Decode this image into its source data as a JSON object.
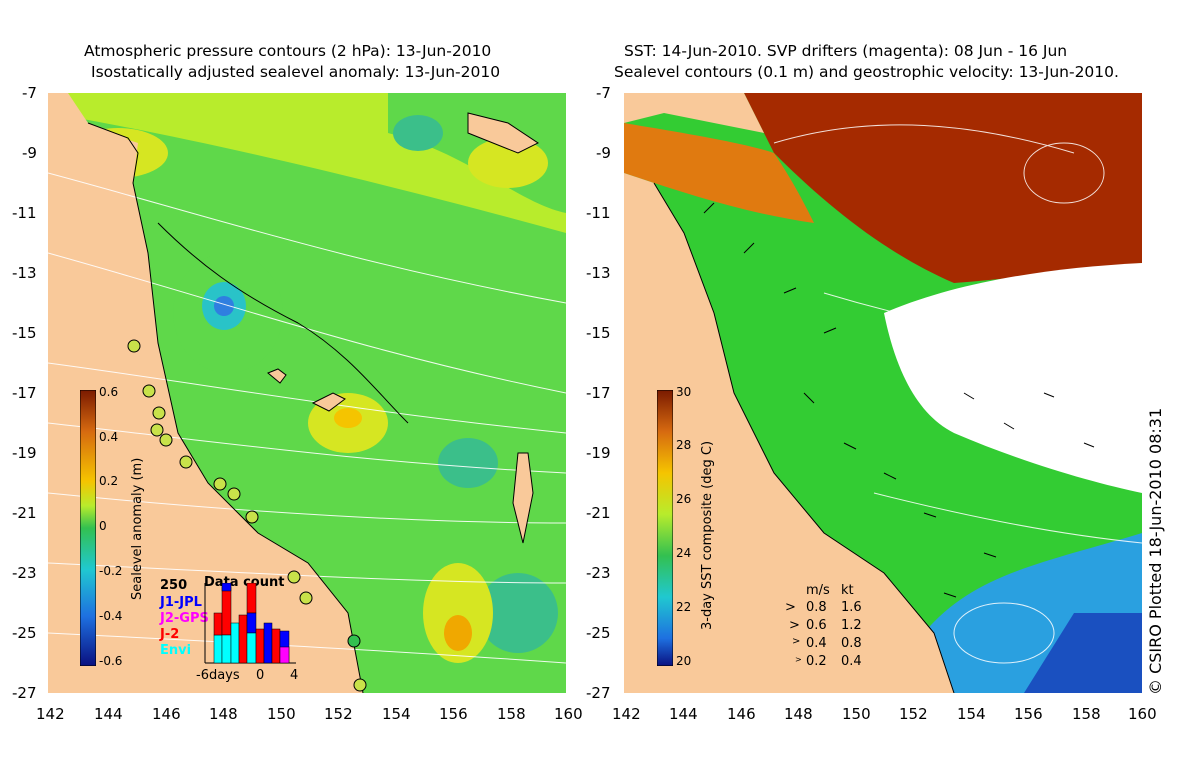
{
  "left_panel": {
    "title_line1": "Atmospheric pressure contours (2 hPa): 13-Jun-2010",
    "title_line2": "Isostatically adjusted sealevel anomaly: 13-Jun-2010",
    "colorbar": {
      "label": "Sealevel anomaly (m)",
      "ticks": [
        "0.6",
        "0.4",
        "0.2",
        "0",
        "-0.2",
        "-0.4",
        "-0.6"
      ]
    },
    "data_count": {
      "title": "Data count",
      "ymax_label": "250",
      "series": [
        "J1-JPL",
        "J2-GPS",
        "J-2",
        "Envi"
      ],
      "series_colors": [
        "#0000ff",
        "#ff00ff",
        "#ff0000",
        "#00ffff"
      ],
      "xlabel_left": "-6days",
      "xlabel_mid": "0",
      "xlabel_right": "4"
    }
  },
  "right_panel": {
    "title_line1": "SST: 14-Jun-2010. SVP drifters (magenta): 08 Jun - 16 Jun",
    "title_line2": "Sealevel contours (0.1 m) and geostrophic velocity: 13-Jun-2010.",
    "colorbar": {
      "label": "3-day SST composite (deg C)",
      "ticks": [
        "30",
        "28",
        "26",
        "24",
        "22",
        "20"
      ]
    },
    "velocity_legend": {
      "header_ms": "m/s",
      "header_kt": "kt",
      "rows": [
        {
          "ms": "0.8",
          "kt": "1.6"
        },
        {
          "ms": "0.6",
          "kt": "1.2"
        },
        {
          "ms": "0.4",
          "kt": "0.8"
        },
        {
          "ms": "0.2",
          "kt": "0.4"
        }
      ]
    },
    "copyright": "© CSIRO Plotted 18-Jun-2010 08:31"
  },
  "axes": {
    "lat_ticks": [
      "-7",
      "-9",
      "-11",
      "-13",
      "-15",
      "-17",
      "-19",
      "-21",
      "-23",
      "-25",
      "-27"
    ],
    "lon_ticks": [
      "142",
      "144",
      "146",
      "148",
      "150",
      "152",
      "154",
      "156",
      "158",
      "160"
    ]
  },
  "colors": {
    "land": "#f9c99a",
    "sla_green": "#55d64a",
    "sla_yellowgreen": "#b4ea2a",
    "sst_red": "#a52a00",
    "sst_green": "#33cc33"
  }
}
